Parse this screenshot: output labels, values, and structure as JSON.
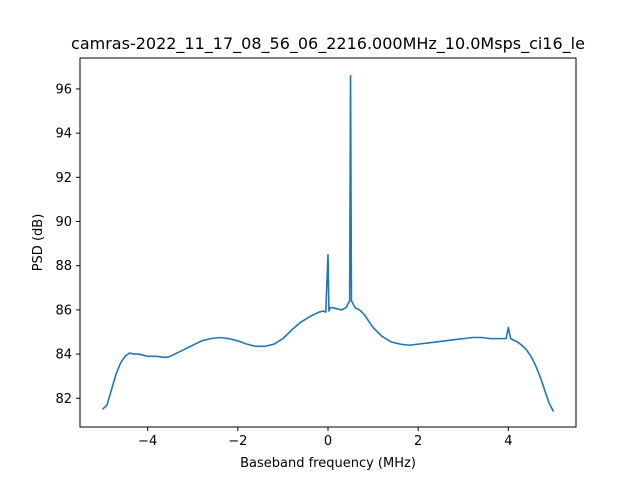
{
  "chart_data": {
    "type": "line",
    "title": "camras-2022_11_17_08_56_06_2216.000MHz_10.0Msps_ci16_le",
    "xlabel": "Baseband frequency (MHz)",
    "ylabel": "PSD (dB)",
    "xlim": [
      -5.5,
      5.5
    ],
    "ylim": [
      80.7,
      97.4
    ],
    "xticks": [
      -4,
      -2,
      0,
      2,
      4
    ],
    "xtick_labels": [
      "−4",
      "−2",
      "0",
      "2",
      "4"
    ],
    "yticks": [
      82,
      84,
      86,
      88,
      90,
      92,
      94,
      96
    ],
    "ytick_labels": [
      "82",
      "84",
      "86",
      "88",
      "90",
      "92",
      "94",
      "96"
    ],
    "grid": false,
    "series": [
      {
        "color": "#1f77b4",
        "x": [
          -5.0,
          -4.9,
          -4.8,
          -4.7,
          -4.6,
          -4.5,
          -4.4,
          -4.3,
          -4.2,
          -4.1,
          -4.0,
          -3.8,
          -3.6,
          -3.5,
          -3.4,
          -3.2,
          -3.0,
          -2.8,
          -2.6,
          -2.4,
          -2.2,
          -2.0,
          -1.8,
          -1.6,
          -1.4,
          -1.2,
          -1.0,
          -0.8,
          -0.6,
          -0.4,
          -0.3,
          -0.2,
          -0.1,
          -0.05,
          0.0,
          0.02,
          0.05,
          0.1,
          0.2,
          0.3,
          0.4,
          0.45,
          0.48,
          0.5,
          0.52,
          0.55,
          0.6,
          0.7,
          0.8,
          0.9,
          1.0,
          1.2,
          1.4,
          1.6,
          1.8,
          2.0,
          2.2,
          2.4,
          2.6,
          2.8,
          3.0,
          3.2,
          3.4,
          3.6,
          3.8,
          3.95,
          4.0,
          4.05,
          4.1,
          4.2,
          4.3,
          4.4,
          4.5,
          4.6,
          4.7,
          4.8,
          4.9,
          5.0
        ],
        "y": [
          81.5,
          81.7,
          82.4,
          83.1,
          83.6,
          83.9,
          84.05,
          84.0,
          84.0,
          83.95,
          83.9,
          83.9,
          83.85,
          83.9,
          84.0,
          84.2,
          84.4,
          84.6,
          84.7,
          84.75,
          84.7,
          84.6,
          84.45,
          84.35,
          84.35,
          84.45,
          84.7,
          85.1,
          85.45,
          85.7,
          85.8,
          85.9,
          85.95,
          85.9,
          88.5,
          85.95,
          86.1,
          86.1,
          86.05,
          86.0,
          86.1,
          86.3,
          86.4,
          96.6,
          86.4,
          86.3,
          86.1,
          86.0,
          85.8,
          85.5,
          85.2,
          84.8,
          84.55,
          84.45,
          84.4,
          84.45,
          84.5,
          84.55,
          84.6,
          84.65,
          84.7,
          84.75,
          84.75,
          84.7,
          84.7,
          84.7,
          85.2,
          84.7,
          84.65,
          84.55,
          84.4,
          84.2,
          83.9,
          83.5,
          83.0,
          82.4,
          81.8,
          81.4
        ]
      }
    ]
  }
}
